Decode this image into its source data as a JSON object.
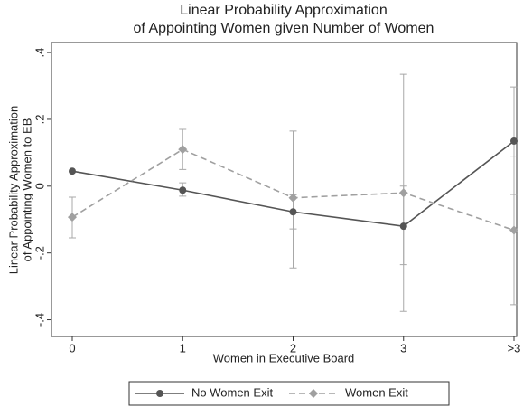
{
  "chart_data": {
    "type": "line",
    "title": [
      "Linear Probability Approximation",
      "of Appointing Women given Number of Women"
    ],
    "y_label": [
      "Linear Probability Approximation",
      "of Appointing Women to EB"
    ],
    "x_label": "Women in Executive Board",
    "categories": [
      "0",
      "1",
      "2",
      "3",
      ">3"
    ],
    "series": [
      {
        "name": "No Women Exit",
        "color": "#555555",
        "dash": false,
        "marker": "circle",
        "values": [
          0.045,
          -0.012,
          -0.077,
          -0.12,
          0.135
        ],
        "lower": [
          null,
          -0.03,
          -0.128,
          -0.235,
          -0.025
        ],
        "upper": [
          null,
          0.01,
          -0.026,
          0.0,
          0.297
        ]
      },
      {
        "name": "Women Exit",
        "color": "#a0a0a0",
        "dash": true,
        "marker": "diamond",
        "values": [
          -0.093,
          0.11,
          -0.035,
          -0.02,
          -0.132
        ],
        "lower": [
          -0.155,
          0.05,
          -0.245,
          -0.375,
          -0.355
        ],
        "upper": [
          -0.033,
          0.17,
          0.165,
          0.335,
          0.09
        ]
      }
    ],
    "ylim": [
      -0.45,
      0.43
    ],
    "yticks": [
      {
        "value": -0.4,
        "label": "-.4"
      },
      {
        "value": -0.2,
        "label": "-.2"
      },
      0,
      {
        "value": 0.2,
        "label": ".2"
      },
      {
        "value": 0.4,
        "label": ".4"
      }
    ],
    "legend": "bottom"
  }
}
